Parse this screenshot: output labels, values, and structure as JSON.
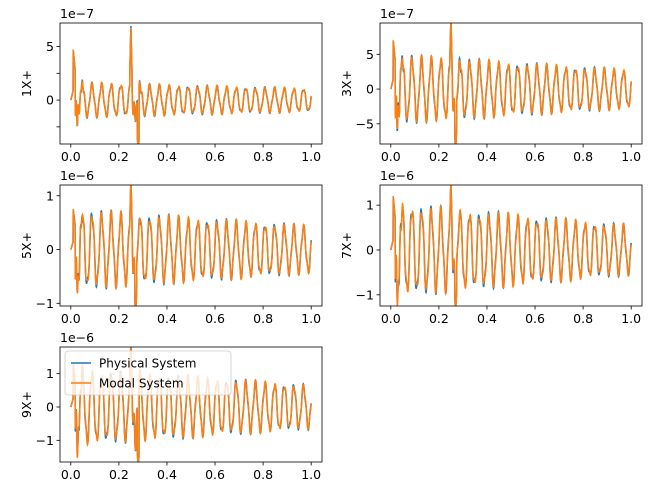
{
  "figure": {
    "legend": {
      "entries": [
        {
          "label": "Physical System",
          "color": "#1f77b4"
        },
        {
          "label": "Modal System",
          "color": "#ff7f0e"
        }
      ],
      "placement": "upper-left of fifth panel"
    }
  },
  "chart_data": [
    {
      "type": "line",
      "ylabel": "1X+",
      "offset_text": "1e−7",
      "scale": 1e-07,
      "xlim": [
        0.0,
        1.0
      ],
      "ylim": [
        -4.1,
        7.2
      ],
      "x_ticks": [
        0.0,
        0.2,
        0.4,
        0.6,
        0.8,
        1.0
      ],
      "x_tick_labels": [
        "0.0",
        "0.2",
        "0.4",
        "0.6",
        "0.8",
        "1.0"
      ],
      "y_ticks": [
        -2.5,
        0,
        2.5,
        5.0
      ],
      "y_tick_labels": [
        "",
        "0",
        "",
        "5"
      ],
      "signal": {
        "cycles": 25,
        "amp_start": 1.5,
        "amp_end": 1.0,
        "dc": 0.0,
        "spike1": 4.7,
        "spike1_min": -2.6,
        "spike2": 6.4,
        "spike2_min": -3.8,
        "dip_at": 0.28,
        "dip": -3.8
      },
      "series": [
        {
          "name": "Physical System",
          "color": "#1f77b4"
        },
        {
          "name": "Modal System",
          "color": "#ff7f0e"
        }
      ]
    },
    {
      "type": "line",
      "ylabel": "3X+",
      "offset_text": "1e−7",
      "scale": 1e-07,
      "xlim": [
        0.0,
        1.0
      ],
      "ylim": [
        -7.9,
        9.5
      ],
      "x_ticks": [
        0.0,
        0.2,
        0.4,
        0.6,
        0.8,
        1.0
      ],
      "x_tick_labels": [
        "0.0",
        "0.2",
        "0.4",
        "0.6",
        "0.8",
        "1.0"
      ],
      "y_ticks": [
        -5,
        0,
        5
      ],
      "y_tick_labels": [
        "−5",
        "0",
        "5"
      ],
      "signal": {
        "cycles": 25,
        "amp_start": 4.5,
        "amp_end": 2.5,
        "dc": 0.0,
        "spike1": 7.0,
        "spike1_min": -6.0,
        "spike2": 8.8,
        "spike2_min": -7.0,
        "dip_at": 0.27,
        "dip": -7.0
      },
      "series": [
        {
          "name": "Physical System",
          "color": "#1f77b4"
        },
        {
          "name": "Modal System",
          "color": "#ff7f0e"
        }
      ]
    },
    {
      "type": "line",
      "ylabel": "5X+",
      "offset_text": "1e−6",
      "scale": 1e-06,
      "xlim": [
        0.0,
        1.0
      ],
      "ylim": [
        -1.05,
        1.2
      ],
      "x_ticks": [
        0.0,
        0.2,
        0.4,
        0.6,
        0.8,
        1.0
      ],
      "x_tick_labels": [
        "0.0",
        "0.2",
        "0.4",
        "0.6",
        "0.8",
        "1.0"
      ],
      "y_ticks": [
        -1,
        0,
        1
      ],
      "y_tick_labels": [
        "−1",
        "0",
        "1"
      ],
      "signal": {
        "cycles": 25,
        "amp_start": 0.68,
        "amp_end": 0.4,
        "dc": 0.0,
        "spike1": 0.75,
        "spike1_min": -0.7,
        "spike2": 1.1,
        "spike2_min": -0.9,
        "dip_at": 0.27,
        "dip": -0.95
      },
      "series": [
        {
          "name": "Physical System",
          "color": "#1f77b4"
        },
        {
          "name": "Modal System",
          "color": "#ff7f0e"
        }
      ]
    },
    {
      "type": "line",
      "ylabel": "7X+",
      "offset_text": "1e−6",
      "scale": 1e-06,
      "xlim": [
        0.0,
        1.0
      ],
      "ylim": [
        -1.25,
        1.45
      ],
      "x_ticks": [
        0.0,
        0.2,
        0.4,
        0.6,
        0.8,
        1.0
      ],
      "x_tick_labels": [
        "0.0",
        "0.2",
        "0.4",
        "0.6",
        "0.8",
        "1.0"
      ],
      "y_ticks": [
        -1,
        0,
        1
      ],
      "y_tick_labels": [
        "−1",
        "0",
        "1"
      ],
      "signal": {
        "cycles": 25,
        "amp_start": 0.95,
        "amp_end": 0.5,
        "dc": 0.0,
        "spike1": 1.2,
        "spike1_min": -0.9,
        "spike2": 1.25,
        "spike2_min": -1.0,
        "dip_at": 0.27,
        "dip": -1.1
      },
      "series": [
        {
          "name": "Physical System",
          "color": "#1f77b4"
        },
        {
          "name": "Modal System",
          "color": "#ff7f0e"
        }
      ]
    },
    {
      "type": "line",
      "ylabel": "9X+",
      "offset_text": "1e−6",
      "scale": 1e-06,
      "xlim": [
        0.0,
        1.0
      ],
      "ylim": [
        -1.65,
        1.8
      ],
      "x_ticks": [
        0.0,
        0.2,
        0.4,
        0.6,
        0.8,
        1.0
      ],
      "x_tick_labels": [
        "0.0",
        "0.2",
        "0.4",
        "0.6",
        "0.8",
        "1.0"
      ],
      "y_ticks": [
        -1,
        0,
        1
      ],
      "y_tick_labels": [
        "−1",
        "0",
        "1"
      ],
      "signal": {
        "cycles": 25,
        "amp_start": 1.05,
        "amp_end": 0.6,
        "dc": 0.0,
        "spike1": 1.3,
        "spike1_min": -1.1,
        "spike2": 1.6,
        "spike2_min": -1.4,
        "dip_at": 0.28,
        "dip": -1.5
      },
      "series": [
        {
          "name": "Physical System",
          "color": "#1f77b4"
        },
        {
          "name": "Modal System",
          "color": "#ff7f0e"
        }
      ]
    }
  ]
}
